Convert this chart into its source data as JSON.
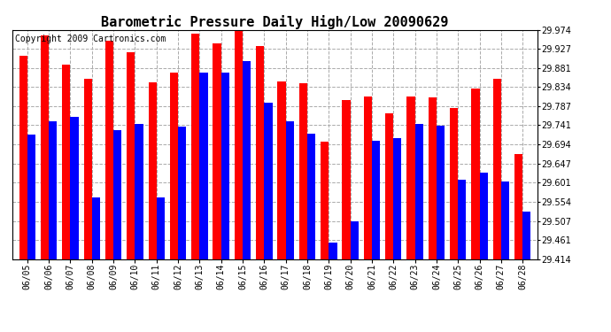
{
  "title": "Barometric Pressure Daily High/Low 20090629",
  "copyright": "Copyright 2009 Cartronics.com",
  "dates": [
    "06/05",
    "06/06",
    "06/07",
    "06/08",
    "06/09",
    "06/10",
    "06/11",
    "06/12",
    "06/13",
    "06/14",
    "06/15",
    "06/16",
    "06/17",
    "06/18",
    "06/19",
    "06/20",
    "06/21",
    "06/22",
    "06/23",
    "06/24",
    "06/25",
    "06/26",
    "06/27",
    "06/28"
  ],
  "highs": [
    29.91,
    29.96,
    29.89,
    29.855,
    29.948,
    29.92,
    29.845,
    29.87,
    29.965,
    29.94,
    29.972,
    29.935,
    29.847,
    29.843,
    29.7,
    29.803,
    29.812,
    29.77,
    29.812,
    29.808,
    29.783,
    29.83,
    29.855,
    29.67
  ],
  "lows": [
    29.718,
    29.75,
    29.762,
    29.565,
    29.728,
    29.745,
    29.565,
    29.738,
    29.87,
    29.87,
    29.898,
    29.795,
    29.75,
    29.72,
    29.455,
    29.507,
    29.704,
    29.71,
    29.745,
    29.74,
    29.608,
    29.625,
    29.604,
    29.53
  ],
  "ylim_min": 29.414,
  "ylim_max": 29.974,
  "yticks": [
    29.974,
    29.927,
    29.881,
    29.834,
    29.787,
    29.741,
    29.694,
    29.647,
    29.601,
    29.554,
    29.507,
    29.461,
    29.414
  ],
  "high_color": "#FF0000",
  "low_color": "#0000FF",
  "bg_color": "#FFFFFF",
  "grid_color": "#AAAAAA",
  "title_fontsize": 11,
  "tick_fontsize": 7,
  "copyright_fontsize": 7,
  "bar_width": 0.38
}
